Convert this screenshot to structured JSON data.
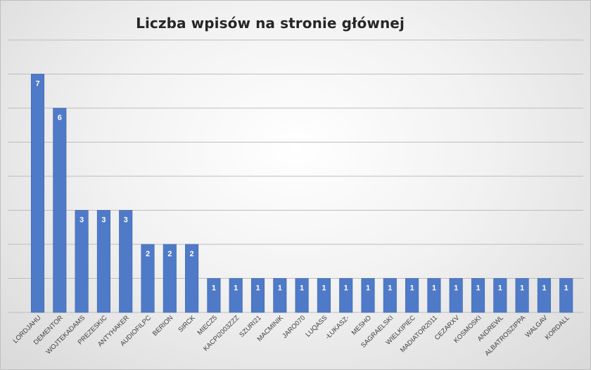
{
  "chart_data": {
    "type": "bar",
    "title": "Liczba wpisów na stronie głównej",
    "xlabel": "",
    "ylabel": "",
    "categories": [
      "LORDJAHU",
      "DEMENTOR",
      "WOJTEKADAMS",
      "PREZESKIC",
      "ANTYHAKER",
      "AUDIOFILPC",
      "BERION",
      "SIRCK",
      "MIECZ5",
      "KACPI2003ZZZ",
      "SZURI21",
      "MACMINIK",
      "JARO070",
      "LUQASS",
      "-ŁUKASZ-",
      "MESHO",
      "SAGRAELSKI",
      "WIELKIPIEC",
      "MADIATOR2011",
      "CEZARXV",
      "KOSMOSKI",
      "ANDREWL",
      "ALBATROSZIPPA",
      "WALGAV",
      "KORDALL"
    ],
    "values": [
      7,
      6,
      3,
      3,
      3,
      2,
      2,
      2,
      1,
      1,
      1,
      1,
      1,
      1,
      1,
      1,
      1,
      1,
      1,
      1,
      1,
      1,
      1,
      1,
      1
    ],
    "ylim": [
      0,
      8
    ],
    "grid": true,
    "legend": "none",
    "colors": {
      "bar": "#4f7ac7",
      "bar_edge": "#3f66ad",
      "grid": "#bdbdbd",
      "data_label": "#ffffff",
      "tick_label": "#404040"
    }
  }
}
